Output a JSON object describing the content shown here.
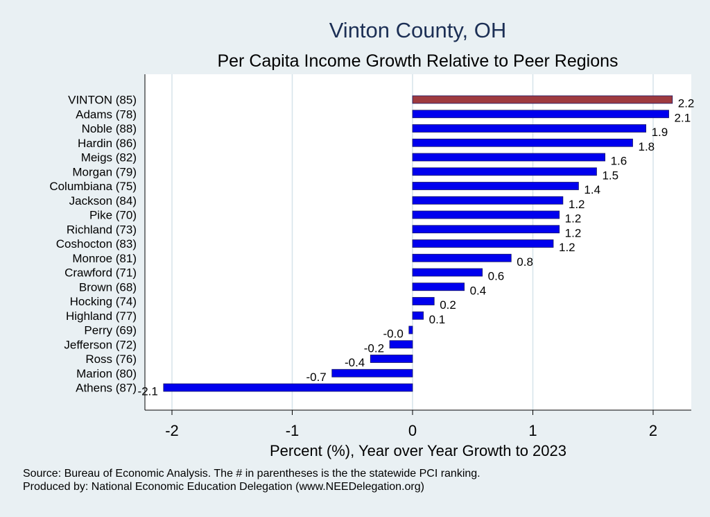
{
  "chart_data": {
    "type": "bar",
    "orientation": "horizontal",
    "title": "Vinton County, OH",
    "subtitle": "Per Capita Income Growth Relative to Peer Regions",
    "xlabel": "Percent (%), Year over Year Growth to 2023",
    "ylabel": "",
    "xlim": [
      -2.2,
      2.3
    ],
    "xticks": [
      -2,
      -1,
      0,
      1,
      2
    ],
    "grid": "vertical",
    "categories": [
      "VINTON (85)",
      "Adams (78)",
      "Noble (88)",
      "Hardin (86)",
      "Meigs (82)",
      "Morgan (79)",
      "Columbiana (75)",
      "Jackson (84)",
      "Pike (70)",
      "Richland (73)",
      "Coshocton (83)",
      "Monroe (81)",
      "Crawford (71)",
      "Brown (68)",
      "Hocking (74)",
      "Highland (77)",
      "Perry (69)",
      "Jefferson (72)",
      "Ross (76)",
      "Marion (80)",
      "Athens (87)"
    ],
    "values": [
      2.16,
      2.13,
      1.94,
      1.83,
      1.6,
      1.53,
      1.38,
      1.25,
      1.22,
      1.22,
      1.17,
      0.82,
      0.58,
      0.43,
      0.18,
      0.09,
      -0.03,
      -0.19,
      -0.35,
      -0.67,
      -2.07
    ],
    "value_labels": [
      "2.2",
      "2.1",
      "1.9",
      "1.8",
      "1.6",
      "1.5",
      "1.4",
      "1.2",
      "1.2",
      "1.2",
      "1.2",
      "0.8",
      "0.6",
      "0.4",
      "0.2",
      "0.1",
      "-0.0",
      "-0.2",
      "-0.4",
      "-0.7",
      "-2.1"
    ],
    "highlight_index": 0,
    "colors": {
      "highlight": "#9e3a3f",
      "bar": "#0000ee",
      "bar_edge": "#1a1a66",
      "grid": "#d6e3ea",
      "plot_bg": "#ffffff",
      "axis": "#000000"
    }
  },
  "footnotes": [
    "Source: Bureau of Economic Analysis. The # in parentheses is the the statewide PCI ranking.",
    "Produced by: National Economic Education Delegation (www.NEEDelegation.org)"
  ]
}
